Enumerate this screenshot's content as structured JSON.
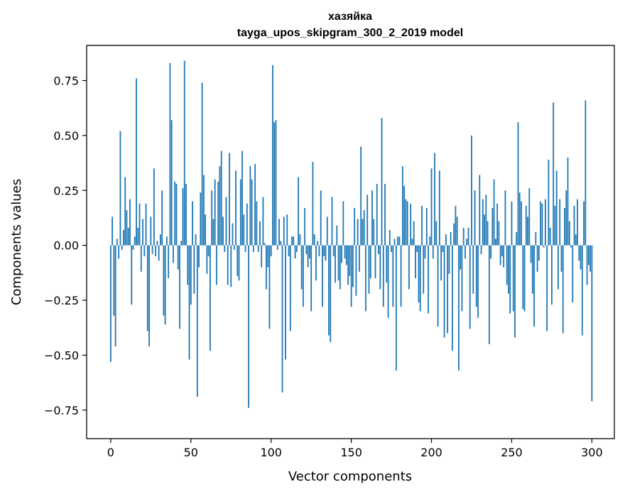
{
  "chart_data": {
    "type": "bar",
    "title": "хазяйка",
    "subtitle": "tayga_upos_skipgram_300_2_2019 model",
    "xlabel": "Vector components",
    "ylabel": "Components values",
    "xlim": [
      -15,
      314
    ],
    "ylim": [
      -0.88,
      0.91
    ],
    "xticks": [
      0,
      50,
      100,
      150,
      200,
      250,
      300
    ],
    "yticks": [
      -0.75,
      -0.5,
      -0.25,
      0.0,
      0.25,
      0.5,
      0.75
    ],
    "xtick_labels": [
      "0",
      "50",
      "100",
      "150",
      "200",
      "250",
      "300"
    ],
    "ytick_labels": [
      "−0.75",
      "−0.50",
      "−0.25",
      "0.00",
      "0.25",
      "0.50",
      "0.75"
    ],
    "bar_color": "#1f77b4",
    "grid": false,
    "values": [
      -0.53,
      0.13,
      -0.32,
      -0.46,
      0.03,
      -0.06,
      0.52,
      -0.02,
      0.07,
      0.31,
      0.16,
      0.08,
      0.21,
      -0.27,
      -0.02,
      0.04,
      0.76,
      0.08,
      0.19,
      -0.12,
      0.12,
      -0.05,
      0.19,
      -0.39,
      -0.46,
      0.13,
      -0.04,
      0.35,
      -0.05,
      0.02,
      -0.07,
      0.05,
      0.25,
      -0.32,
      -0.36,
      0.04,
      -0.15,
      0.83,
      0.57,
      -0.08,
      0.29,
      0.28,
      -0.11,
      -0.38,
      0.02,
      0.26,
      0.84,
      0.28,
      -0.18,
      -0.52,
      -0.27,
      0.2,
      -0.22,
      0.05,
      -0.69,
      -0.1,
      0.24,
      0.74,
      0.32,
      0.14,
      -0.13,
      -0.05,
      -0.48,
      0.25,
      0.12,
      0.3,
      -0.18,
      0.29,
      0.36,
      0.43,
      0.13,
      -0.03,
      0.22,
      -0.18,
      0.42,
      -0.19,
      0.1,
      -0.02,
      0.34,
      -0.14,
      -0.16,
      0.3,
      0.43,
      0.14,
      -0.03,
      0.19,
      -0.74,
      0.36,
      0.3,
      -0.03,
      0.37,
      0.2,
      -0.03,
      0.11,
      -0.1,
      0.22,
      0.01,
      -0.2,
      -0.1,
      -0.38,
      -0.05,
      0.82,
      0.56,
      0.57,
      -0.02,
      0.12,
      0.02,
      -0.67,
      0.13,
      -0.52,
      0.14,
      -0.05,
      -0.39,
      0.04,
      0.04,
      -0.06,
      -0.03,
      0.31,
      0.05,
      -0.2,
      -0.28,
      0.17,
      -0.04,
      -0.1,
      -0.06,
      -0.3,
      0.38,
      0.05,
      -0.16,
      0.02,
      -0.05,
      0.25,
      -0.28,
      -0.05,
      -0.07,
      0.13,
      -0.41,
      -0.44,
      0.22,
      -0.05,
      -0.17,
      0.09,
      -0.16,
      -0.2,
      -0.08,
      0.2,
      -0.06,
      -0.09,
      -0.18,
      -0.14,
      -0.28,
      -0.19,
      0.17,
      -0.23,
      0.12,
      -0.12,
      0.45,
      0.12,
      0.16,
      -0.3,
      0.23,
      -0.22,
      -0.15,
      0.25,
      0.12,
      -0.15,
      0.28,
      -0.04,
      -0.2,
      0.58,
      -0.28,
      0.28,
      -0.17,
      -0.33,
      0.07,
      -0.03,
      -0.28,
      0.03,
      -0.57,
      0.04,
      0.04,
      -0.28,
      0.36,
      0.27,
      0.21,
      0.2,
      -0.2,
      0.19,
      0.03,
      0.11,
      -0.15,
      -0.03,
      -0.26,
      -0.3,
      0.18,
      -0.22,
      -0.06,
      0.17,
      -0.31,
      0.04,
      0.35,
      -0.06,
      0.42,
      0.11,
      -0.37,
      0.34,
      -0.16,
      -0.03,
      -0.42,
      0.05,
      -0.4,
      -0.13,
      0.06,
      -0.48,
      0.1,
      0.18,
      0.13,
      -0.57,
      -0.11,
      -0.3,
      0.08,
      -0.06,
      0.03,
      0.08,
      -0.38,
      0.5,
      -0.22,
      0.25,
      -0.28,
      -0.33,
      0.32,
      -0.04,
      0.21,
      0.14,
      0.23,
      0.11,
      -0.45,
      -0.06,
      0.17,
      0.3,
      0.03,
      0.19,
      0.11,
      -0.09,
      -0.05,
      -0.1,
      0.25,
      -0.18,
      -0.22,
      -0.31,
      0.2,
      -0.3,
      -0.42,
      0.06,
      0.56,
      0.24,
      0.2,
      -0.29,
      -0.3,
      0.18,
      0.13,
      0.26,
      -0.08,
      -0.22,
      -0.37,
      0.06,
      -0.12,
      -0.07,
      0.2,
      0.19,
      -0.01,
      0.21,
      -0.39,
      0.39,
      0.08,
      -0.27,
      0.65,
      0.18,
      0.34,
      -0.2,
      0.21,
      -0.12,
      -0.4,
      0.17,
      0.25,
      0.4,
      0.11,
      -0.01,
      -0.26,
      0.18,
      0.05,
      0.21,
      -0.07,
      -0.11,
      -0.41,
      0.2,
      0.66,
      -0.18,
      -0.09,
      -0.12,
      -0.71
    ]
  }
}
